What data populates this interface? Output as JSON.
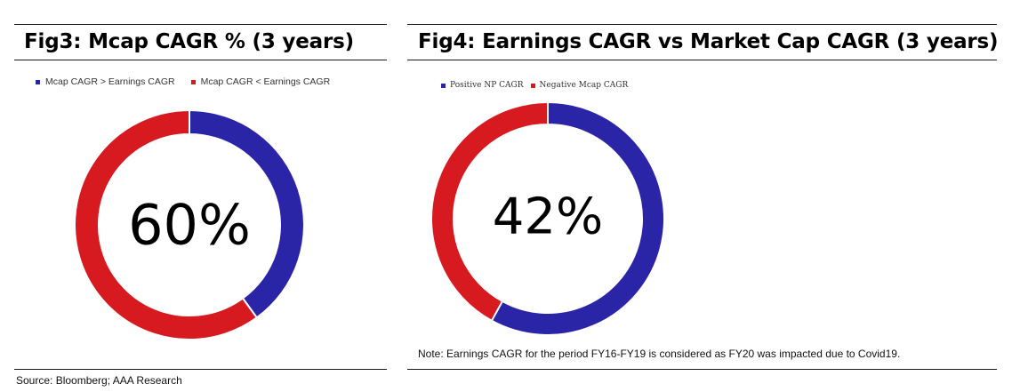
{
  "figures": [
    {
      "title": "Fig3: Mcap CAGR % (3 years)",
      "center_label": "60%",
      "legend": [
        {
          "label": "Mcap CAGR > Earnings CAGR",
          "color": "#2a24a6"
        },
        {
          "label": "Mcap CAGR < Earnings CAGR",
          "color": "#d71920"
        }
      ]
    },
    {
      "title": "Fig4: Earnings CAGR vs Market Cap CAGR (3 years)",
      "center_label": "42%",
      "legend": [
        {
          "label": "Positive NP CAGR",
          "color": "#2a24a6"
        },
        {
          "label": "Negative Mcap CAGR",
          "color": "#d71920"
        }
      ],
      "note": "Note: Earnings CAGR for the period FY16-FY19 is considered as FY20 was impacted due to Covid19."
    }
  ],
  "source": "Source: Bloomberg; AAA Research",
  "chart_data": [
    {
      "type": "pie",
      "donut": true,
      "title": "Fig3: Mcap CAGR % (3 years)",
      "center_label": "60%",
      "categories": [
        "Mcap CAGR > Earnings CAGR",
        "Mcap CAGR < Earnings CAGR"
      ],
      "values": [
        40,
        60
      ],
      "colors": [
        "#2a24a6",
        "#d71920"
      ],
      "legend": "top"
    },
    {
      "type": "pie",
      "donut": true,
      "title": "Fig4: Earnings CAGR vs Market Cap CAGR (3 years)",
      "center_label": "42%",
      "categories": [
        "Positive NP CAGR",
        "Negative Mcap CAGR"
      ],
      "values": [
        58,
        42
      ],
      "colors": [
        "#2a24a6",
        "#d71920"
      ],
      "legend": "top"
    }
  ]
}
